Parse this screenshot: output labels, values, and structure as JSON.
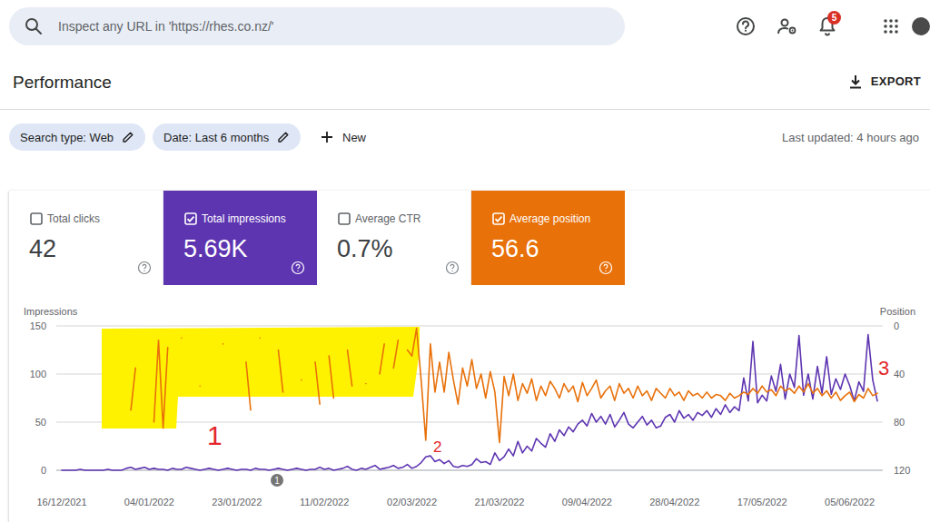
{
  "header": {
    "search_placeholder": "Inspect any URL in 'https://rhes.co.nz/'",
    "notifications": 5
  },
  "page": {
    "title": "Performance",
    "export": "EXPORT",
    "filters": [
      "Search type: Web",
      "Date: Last 6 months"
    ],
    "new_filter": "New",
    "last_updated": "Last updated: 4 hours ago"
  },
  "metrics": [
    {
      "label": "Total clicks",
      "value": "42",
      "checked": false
    },
    {
      "label": "Total impressions",
      "value": "5.69K",
      "checked": true,
      "color": "#5e35b1"
    },
    {
      "label": "Average CTR",
      "value": "0.7%",
      "checked": false
    },
    {
      "label": "Average position",
      "value": "56.6",
      "checked": true,
      "color": "#e8710a"
    }
  ],
  "chart_data": {
    "type": "line",
    "y_label": "Impressions",
    "y2_label": "Position",
    "categories": [
      "16/12/2021",
      null,
      null,
      null,
      null,
      null,
      null,
      null,
      null,
      null,
      null,
      null,
      null,
      null,
      null,
      null,
      null,
      null,
      null,
      "04/01/2022",
      null,
      null,
      null,
      null,
      null,
      null,
      null,
      null,
      null,
      null,
      null,
      null,
      null,
      null,
      null,
      null,
      null,
      null,
      "23/01/2022",
      null,
      null,
      null,
      null,
      null,
      null,
      null,
      null,
      null,
      null,
      null,
      null,
      null,
      null,
      null,
      null,
      null,
      null,
      "11/02/2022",
      null,
      null,
      null,
      null,
      null,
      null,
      null,
      null,
      null,
      null,
      null,
      null,
      null,
      null,
      null,
      null,
      null,
      null,
      "02/03/2022",
      null,
      null,
      null,
      null,
      null,
      null,
      null,
      null,
      null,
      null,
      null,
      null,
      null,
      null,
      null,
      null,
      null,
      null,
      "21/03/2022",
      null,
      null,
      null,
      null,
      null,
      null,
      null,
      null,
      null,
      null,
      null,
      null,
      null,
      null,
      null,
      null,
      null,
      null,
      "09/04/2022",
      null,
      null,
      null,
      null,
      null,
      null,
      null,
      null,
      null,
      null,
      null,
      null,
      null,
      null,
      null,
      null,
      null,
      null,
      "28/04/2022",
      null,
      null,
      null,
      null,
      null,
      null,
      null,
      null,
      null,
      null,
      null,
      null,
      null,
      null,
      null,
      null,
      null,
      null,
      "17/05/2022",
      null,
      null,
      null,
      null,
      null,
      null,
      null,
      null,
      null,
      null,
      null,
      null,
      null,
      null,
      null,
      null,
      null,
      null,
      "05/06/2022",
      null,
      null,
      null,
      null,
      null,
      null
    ],
    "series": [
      {
        "color": "#5e35b1",
        "values": [
          0,
          0,
          0,
          0,
          1,
          0,
          0,
          0,
          0,
          0,
          1,
          0,
          0,
          0,
          2,
          3,
          1,
          2,
          3,
          1,
          2,
          1,
          1,
          0,
          2,
          1,
          1,
          3,
          2,
          1,
          0,
          1,
          2,
          1,
          0,
          1,
          2,
          1,
          0,
          1,
          1,
          0,
          2,
          1,
          1,
          0,
          1,
          2,
          1,
          0,
          1,
          2,
          1,
          0,
          1,
          1,
          3,
          1,
          2,
          0,
          1,
          2,
          4,
          1,
          0,
          2,
          1,
          3,
          5,
          1,
          2,
          3,
          5,
          2,
          3,
          6,
          2,
          4,
          8,
          14,
          15,
          9,
          11,
          7,
          10,
          4,
          3,
          5,
          4,
          6,
          12,
          8,
          9,
          6,
          18,
          10,
          14,
          22,
          15,
          30,
          18,
          25,
          20,
          33,
          28,
          24,
          38,
          30,
          42,
          36,
          45,
          40,
          48,
          52,
          46,
          59,
          50,
          56,
          48,
          58,
          45,
          52,
          60,
          48,
          44,
          50,
          56,
          47,
          52,
          44,
          46,
          55,
          58,
          50,
          62,
          54,
          58,
          52,
          60,
          57,
          62,
          55,
          64,
          58,
          68,
          60,
          66,
          62,
          96,
          72,
          134,
          70,
          78,
          72,
          98,
          82,
          110,
          74,
          100,
          86,
          140,
          78,
          100,
          74,
          108,
          80,
          118,
          79,
          95,
          84,
          100,
          88,
          72,
          92,
          82,
          141,
          94,
          72
        ]
      },
      {
        "color": "#e8710a",
        "axis": "y2",
        "values": [
          null,
          null,
          null,
          null,
          null,
          null,
          null,
          null,
          null,
          null,
          null,
          null,
          null,
          null,
          null,
          70,
          35,
          null,
          null,
          null,
          80,
          12,
          85,
          18,
          null,
          null,
          10,
          null,
          null,
          null,
          50,
          null,
          null,
          null,
          null,
          15,
          null,
          null,
          null,
          null,
          30,
          70,
          null,
          10,
          null,
          null,
          null,
          20,
          55,
          null,
          null,
          null,
          45,
          null,
          null,
          30,
          65,
          null,
          25,
          60,
          null,
          null,
          20,
          50,
          null,
          null,
          48,
          null,
          null,
          40,
          15,
          null,
          35,
          12,
          null,
          20,
          25,
          2,
          45,
          95,
          15,
          55,
          30,
          55,
          22,
          45,
          65,
          35,
          50,
          28,
          52,
          40,
          60,
          38,
          55,
          97,
          42,
          58,
          40,
          62,
          48,
          56,
          44,
          62,
          50,
          58,
          46,
          52,
          60,
          48,
          55,
          50,
          63,
          47,
          58,
          52,
          45,
          60,
          54,
          50,
          62,
          48,
          56,
          52,
          60,
          50,
          58,
          54,
          62,
          52,
          56,
          60,
          52,
          58,
          55,
          62,
          54,
          58,
          56,
          60,
          55,
          60,
          57,
          58,
          62,
          56,
          60,
          58,
          55,
          57,
          52,
          56,
          50,
          55,
          53,
          58,
          50,
          54,
          52,
          56,
          50,
          55,
          48,
          56,
          52,
          58,
          54,
          60,
          55,
          62,
          58,
          55,
          63,
          57,
          60,
          52,
          58,
          56
        ]
      }
    ],
    "ylim": [
      0,
      150
    ],
    "yticks": [
      0,
      50,
      100,
      150
    ],
    "y2lim": [
      120,
      0
    ],
    "y2ticks": [
      0,
      40,
      80,
      120
    ],
    "grid": true,
    "annotations": [
      "1",
      "2",
      "3"
    ],
    "events": [
      "1"
    ]
  }
}
